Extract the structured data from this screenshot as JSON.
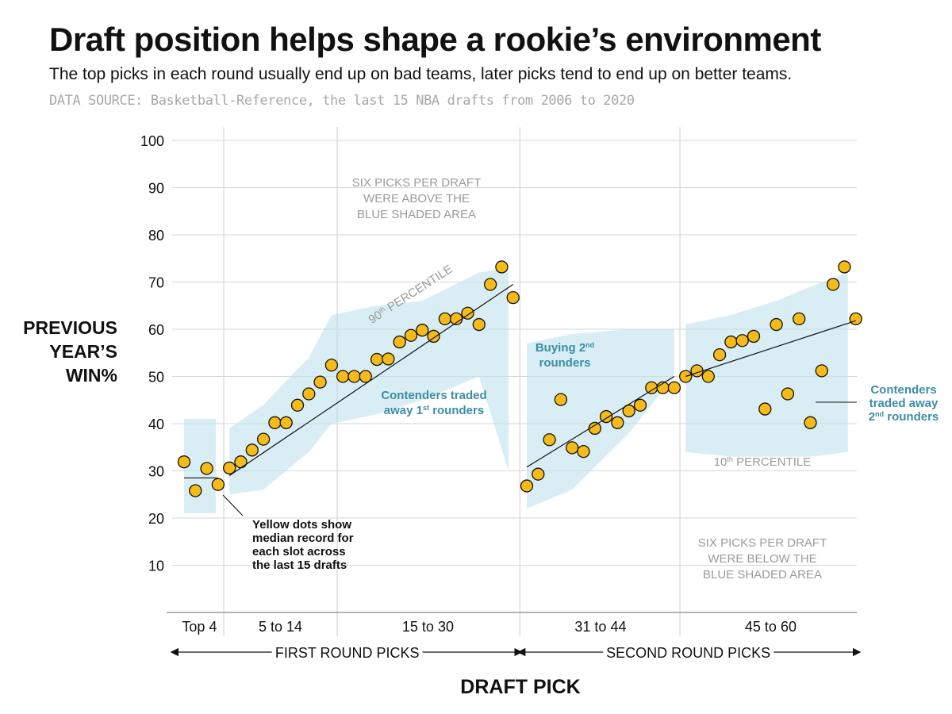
{
  "title": "Draft position helps shape a rookie’s environment",
  "subtitle": "The top picks in each round usually end up on bad teams, later picks tend to end up on better teams.",
  "source": "DATA SOURCE: Basketball-Reference, the last 15 NBA drafts from 2006 to 2020",
  "chart_data": {
    "type": "scatter",
    "title": "Draft position helps shape a rookie’s environment",
    "xlabel": "DRAFT PICK",
    "ylabel_lines": [
      "PREVIOUS",
      "YEAR’S",
      "WIN%"
    ],
    "xlim": [
      1,
      60
    ],
    "ylim": [
      0,
      100
    ],
    "yticks": [
      10,
      20,
      30,
      40,
      50,
      60,
      70,
      80,
      90,
      100
    ],
    "grid": true,
    "groups": [
      {
        "label": "Top 4",
        "from": 1,
        "to": 4
      },
      {
        "label": "5 to 14",
        "from": 5,
        "to": 14
      },
      {
        "label": "15 to 30",
        "from": 15,
        "to": 30
      },
      {
        "label": "31 to 44",
        "from": 31,
        "to": 44
      },
      {
        "label": "45 to 60",
        "from": 45,
        "to": 60
      }
    ],
    "rounds": [
      {
        "label": "FIRST ROUND PICKS",
        "from": 1,
        "to": 30
      },
      {
        "label": "SECOND ROUND PICKS",
        "from": 31,
        "to": 60
      }
    ],
    "series": [
      {
        "name": "Median record",
        "color": "#f6bb18",
        "x": [
          1,
          2,
          3,
          4,
          5,
          6,
          7,
          8,
          9,
          10,
          11,
          12,
          13,
          14,
          15,
          16,
          17,
          18,
          19,
          20,
          21,
          22,
          23,
          24,
          25,
          26,
          27,
          28,
          29,
          30,
          31,
          32,
          33,
          34,
          35,
          36,
          37,
          38,
          39,
          40,
          41,
          42,
          43,
          44,
          45,
          46,
          47,
          48,
          49,
          50,
          51,
          52,
          53,
          54,
          55,
          56,
          57,
          58,
          59,
          60
        ],
        "y": [
          31.9,
          25.8,
          30.5,
          27.1,
          30.6,
          31.9,
          34.4,
          36.7,
          40.2,
          40.2,
          43.9,
          46.3,
          48.8,
          52.4,
          50.0,
          50.0,
          50.0,
          53.6,
          53.7,
          57.3,
          58.7,
          59.8,
          58.5,
          62.2,
          62.2,
          63.4,
          61.0,
          69.5,
          73.2,
          66.7,
          26.8,
          29.3,
          36.6,
          45.1,
          34.9,
          34.1,
          39.0,
          41.5,
          40.2,
          42.7,
          43.9,
          47.6,
          47.6,
          47.6,
          50.0,
          51.2,
          50.0,
          54.6,
          57.3,
          57.6,
          58.5,
          43.1,
          61.0,
          46.3,
          62.2,
          40.2,
          51.2,
          69.5,
          73.2,
          62.2
        ]
      }
    ],
    "trend_lines": [
      {
        "x": [
          1,
          4
        ],
        "y": [
          28.5,
          28.5
        ]
      },
      {
        "x": [
          5,
          30
        ],
        "y": [
          29.0,
          69.5
        ]
      },
      {
        "x": [
          31,
          44
        ],
        "y": [
          30.8,
          50.0
        ]
      },
      {
        "x": [
          45,
          60
        ],
        "y": [
          50.0,
          61.8
        ]
      }
    ],
    "percentile_band_10_90": [
      {
        "x": [
          1,
          3.8
        ],
        "upper": [
          41,
          41
        ],
        "lower": [
          21,
          21
        ]
      },
      {
        "x": [
          5,
          8,
          12,
          14,
          18,
          22,
          27,
          29.6
        ],
        "upper": [
          39,
          44,
          54,
          63,
          65,
          66,
          72,
          73
        ],
        "lower": [
          25,
          26,
          34,
          40,
          42,
          45,
          50,
          30
        ]
      },
      {
        "x": [
          31,
          35,
          40,
          44
        ],
        "upper": [
          57,
          59,
          60,
          60
        ],
        "lower": [
          22,
          26,
          38,
          50
        ]
      },
      {
        "x": [
          45,
          49,
          53,
          56,
          59.3
        ],
        "upper": [
          61,
          63,
          66,
          69,
          72
        ],
        "lower": [
          34,
          33,
          33,
          33,
          34
        ]
      }
    ],
    "annotations": {
      "above": [
        "SIX PICKS PER DRAFT",
        "WERE ABOVE THE",
        "BLUE SHADED AREA"
      ],
      "below": [
        "SIX PICKS PER DRAFT",
        "WERE BELOW THE",
        "BLUE SHADED AREA"
      ],
      "p90": "90th PERCENTILE",
      "p10": "10th PERCENTILE",
      "contenders1": [
        "Contenders traded",
        "away 1st rounders"
      ],
      "buying2": [
        "Buying 2nd",
        "rounders"
      ],
      "contenders2": [
        "Contenders",
        "traded away",
        "2nd rounders"
      ],
      "yellow": [
        "Yellow dots show",
        "median record for",
        "each slot across",
        "the last 15 drafts"
      ]
    }
  }
}
